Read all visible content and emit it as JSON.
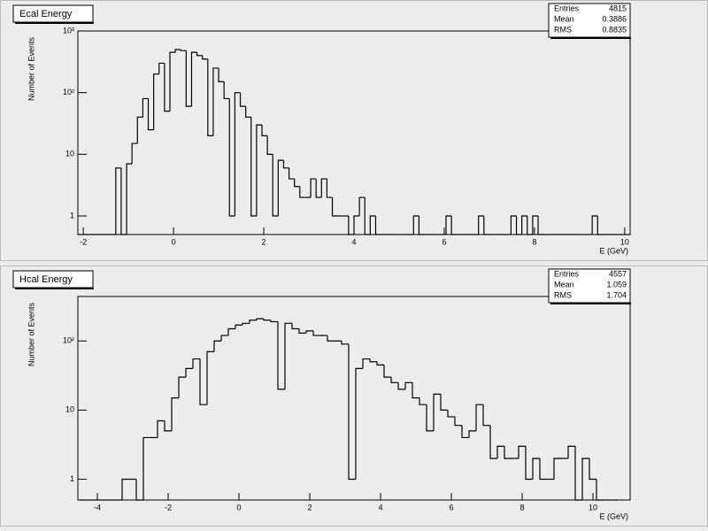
{
  "chart_data": [
    {
      "type": "histogram",
      "title": "Ecal Energy",
      "x_label": "E (GeV)",
      "y_label": "Number of Events",
      "color": "#000000",
      "log_y": true,
      "stats": [
        {
          "label": "Entries",
          "value": 4815
        },
        {
          "label": "Mean",
          "value": 0.3886
        },
        {
          "label": "RMS",
          "value": 0.8835
        }
      ],
      "xlim": [
        -2.12,
        10.12
      ],
      "xticks": [
        -2,
        0,
        2,
        4,
        6,
        8,
        10
      ],
      "ylim": [
        0.5,
        1000
      ],
      "yticks": [
        1,
        10,
        {
          "value": 100,
          "label": "10²"
        },
        {
          "value": 1000,
          "label": "10³"
        }
      ],
      "bins": [
        -2.12,
        -2.0,
        -1.88,
        -1.76,
        -1.64,
        -1.52,
        -1.4,
        -1.28,
        -1.16,
        -1.04,
        -0.92,
        -0.8,
        -0.68,
        -0.56,
        -0.44,
        -0.32,
        -0.2,
        -0.08,
        0.04,
        0.16,
        0.28,
        0.4,
        0.52,
        0.64,
        0.76,
        0.88,
        1.0,
        1.12,
        1.24,
        1.36,
        1.48,
        1.6,
        1.72,
        1.84,
        1.96,
        2.08,
        2.2,
        2.32,
        2.44,
        2.56,
        2.68,
        2.8,
        2.92,
        3.04,
        3.16,
        3.28,
        3.4,
        3.52,
        3.64,
        3.76,
        3.88,
        4.0,
        4.12,
        4.24,
        4.36,
        4.48,
        4.6,
        4.72,
        4.84,
        4.96,
        5.08,
        5.2,
        5.32,
        5.44,
        5.56,
        5.68,
        5.8,
        5.92,
        6.04,
        6.16,
        6.28,
        6.4,
        6.52,
        6.64,
        6.76,
        6.88,
        7.0,
        7.12,
        7.24,
        7.36,
        7.48,
        7.6,
        7.72,
        7.84,
        7.96,
        8.08,
        8.2,
        8.32,
        8.44,
        8.56,
        8.68,
        8.8,
        8.92,
        9.04,
        9.16,
        9.28,
        9.4,
        9.52,
        9.64,
        9.76,
        9.88,
        10.0,
        10.12
      ],
      "values": [
        0,
        0,
        0,
        0,
        0,
        0,
        0,
        6,
        0,
        7,
        15,
        40,
        80,
        25,
        200,
        300,
        50,
        450,
        500,
        480,
        60,
        450,
        400,
        350,
        20,
        250,
        150,
        80,
        1,
        100,
        60,
        40,
        1,
        30,
        20,
        10,
        1,
        8,
        6,
        4,
        3,
        2,
        2,
        4,
        2,
        4,
        2,
        1,
        1,
        1,
        0,
        1,
        2,
        0,
        1,
        0,
        0,
        0,
        0,
        0,
        0,
        0,
        1,
        0,
        0,
        0,
        0,
        0,
        1,
        0,
        0,
        0,
        0,
        0,
        1,
        0,
        0,
        0,
        0,
        0,
        1,
        0,
        1,
        0,
        1,
        0,
        0,
        0,
        0,
        0,
        0,
        0,
        0,
        0,
        0,
        1,
        0,
        0,
        0,
        0,
        0,
        0
      ]
    },
    {
      "type": "histogram",
      "title": "Hcal Energy",
      "x_label": "E (GeV)",
      "y_label": "Number of Events",
      "color": "#000000",
      "log_y": true,
      "stats": [
        {
          "label": "Entries",
          "value": 4557
        },
        {
          "label": "Mean",
          "value": 1.059
        },
        {
          "label": "RMS",
          "value": 1.704
        }
      ],
      "xlim": [
        -4.55,
        11.05
      ],
      "xticks": [
        -4,
        -2,
        0,
        2,
        4,
        6,
        8,
        10
      ],
      "ylim": [
        0.5,
        440
      ],
      "yticks": [
        1,
        10,
        {
          "value": 100,
          "label": "10²"
        }
      ],
      "bins": [
        -4.5,
        -4.3,
        -4.1,
        -3.9,
        -3.7,
        -3.5,
        -3.3,
        -3.1,
        -2.9,
        -2.7,
        -2.5,
        -2.3,
        -2.1,
        -1.9,
        -1.7,
        -1.5,
        -1.3,
        -1.1,
        -0.9,
        -0.7,
        -0.5,
        -0.3,
        -0.1,
        0.1,
        0.3,
        0.5,
        0.7,
        0.9,
        1.1,
        1.3,
        1.5,
        1.7,
        1.9,
        2.1,
        2.3,
        2.5,
        2.7,
        2.9,
        3.1,
        3.3,
        3.5,
        3.7,
        3.9,
        4.1,
        4.3,
        4.5,
        4.7,
        4.9,
        5.1,
        5.3,
        5.5,
        5.7,
        5.9,
        6.1,
        6.3,
        6.5,
        6.7,
        6.9,
        7.1,
        7.3,
        7.5,
        7.7,
        7.9,
        8.1,
        8.3,
        8.5,
        8.7,
        8.9,
        9.1,
        9.3,
        9.5,
        9.7,
        9.9,
        10.1,
        10.3,
        10.5,
        10.7
      ],
      "values": [
        0,
        0,
        0,
        0,
        0,
        0,
        1,
        1,
        0,
        4,
        4,
        7,
        5,
        15,
        30,
        40,
        55,
        12,
        70,
        100,
        120,
        150,
        170,
        180,
        200,
        210,
        200,
        190,
        20,
        180,
        150,
        130,
        140,
        120,
        120,
        100,
        100,
        90,
        1,
        40,
        55,
        50,
        45,
        30,
        25,
        20,
        25,
        15,
        12,
        5,
        17,
        10,
        8,
        6,
        4,
        5,
        12,
        6,
        2,
        3,
        2,
        2,
        3,
        1,
        2,
        1,
        1,
        2,
        2,
        3,
        0,
        2,
        1,
        0,
        0,
        0
      ]
    }
  ]
}
